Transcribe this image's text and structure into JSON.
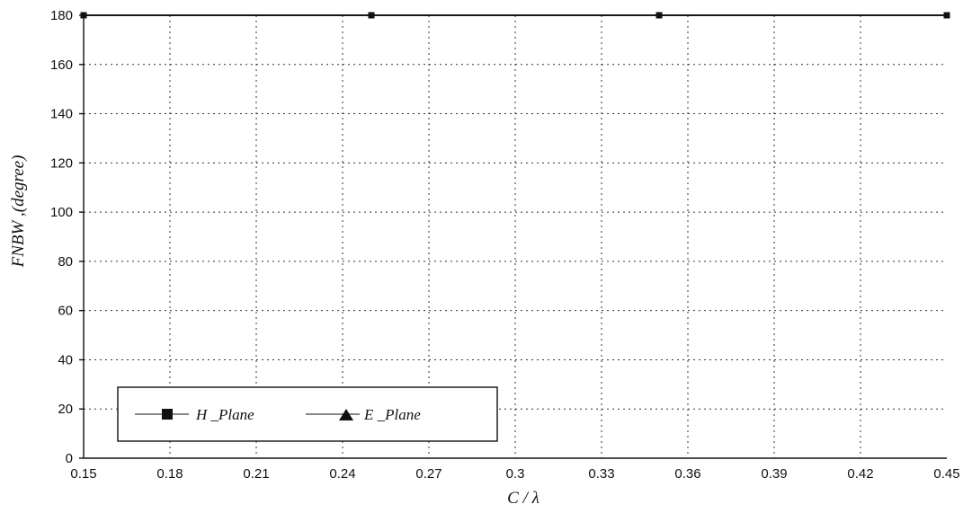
{
  "chart_data": {
    "type": "line",
    "xlabel": "C / λ",
    "ylabel": "FNBW ,(degree)",
    "x_ticks": [
      "0.15",
      "0.18",
      "0.21",
      "0.24",
      "0.27",
      "0.3",
      "0.33",
      "0.36",
      "0.39",
      "0.42",
      "0.45"
    ],
    "y_ticks": [
      "0",
      "20",
      "40",
      "60",
      "80",
      "100",
      "120",
      "140",
      "160",
      "180"
    ],
    "xlim": [
      0.15,
      0.45
    ],
    "ylim": [
      0,
      180
    ],
    "grid": true,
    "legend_position": "bottom-left",
    "series": [
      {
        "name": "H _Plane",
        "marker": "square",
        "color": "#111111",
        "x": [
          0.15,
          0.25,
          0.35,
          0.45
        ],
        "y": [
          180,
          180,
          180,
          180
        ]
      },
      {
        "name": "E _Plane",
        "marker": "triangle",
        "color": "#111111",
        "x": [
          0.15,
          0.25,
          0.35,
          0.45
        ],
        "y": [
          180,
          180,
          180,
          180
        ]
      }
    ]
  }
}
